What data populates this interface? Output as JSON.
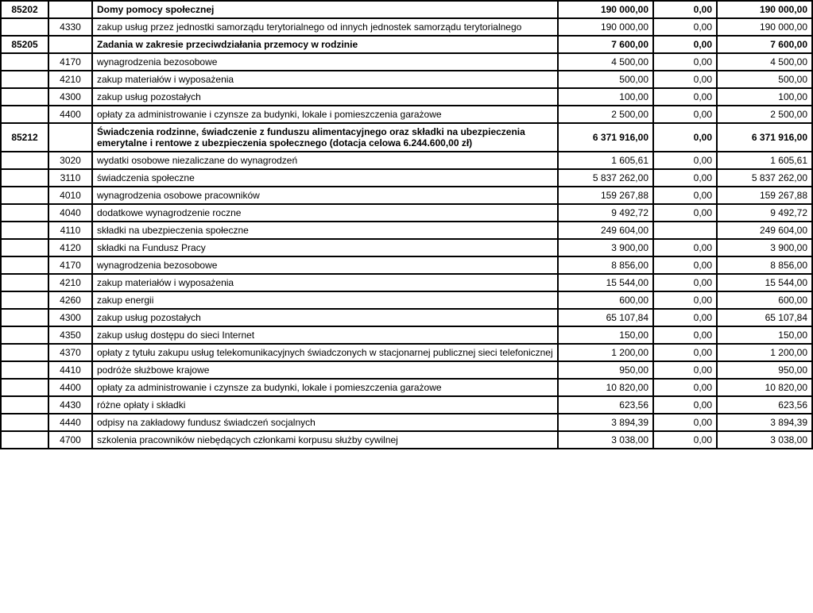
{
  "rows": [
    {
      "code": "85202",
      "sub": "",
      "desc": "Domy pomocy społecznej",
      "v1": "190 000,00",
      "v2": "0,00",
      "v3": "190 000,00",
      "bold": true
    },
    {
      "code": "",
      "sub": "4330",
      "desc": "zakup usług przez jednostki samorządu terytorialnego od innych jednostek samorządu terytorialnego",
      "v1": "190 000,00",
      "v2": "0,00",
      "v3": "190 000,00",
      "bold": false
    },
    {
      "code": "85205",
      "sub": "",
      "desc": "Zadania w zakresie przeciwdziałania przemocy w rodzinie",
      "v1": "7 600,00",
      "v2": "0,00",
      "v3": "7 600,00",
      "bold": true
    },
    {
      "code": "",
      "sub": "4170",
      "desc": "wynagrodzenia bezosobowe",
      "v1": "4 500,00",
      "v2": "0,00",
      "v3": "4 500,00",
      "bold": false
    },
    {
      "code": "",
      "sub": "4210",
      "desc": "zakup materiałów i wyposażenia",
      "v1": "500,00",
      "v2": "0,00",
      "v3": "500,00",
      "bold": false
    },
    {
      "code": "",
      "sub": "4300",
      "desc": "zakup usług pozostałych",
      "v1": "100,00",
      "v2": "0,00",
      "v3": "100,00",
      "bold": false
    },
    {
      "code": "",
      "sub": "4400",
      "desc": "opłaty za administrowanie i czynsze za budynki, lokale i pomieszczenia garażowe",
      "v1": "2 500,00",
      "v2": "0,00",
      "v3": "2 500,00",
      "bold": false
    },
    {
      "code": "85212",
      "sub": "",
      "desc": "Świadczenia rodzinne, świadczenie z funduszu alimentacyjnego oraz składki na ubezpieczenia emerytalne i rentowe z ubezpieczenia społecznego (dotacja celowa 6.244.600,00 zł)",
      "v1": "6 371 916,00",
      "v2": "0,00",
      "v3": "6 371 916,00",
      "bold": true
    },
    {
      "code": "",
      "sub": "3020",
      "desc": "wydatki osobowe niezaliczane do wynagrodzeń",
      "v1": "1 605,61",
      "v2": "0,00",
      "v3": "1 605,61",
      "bold": false
    },
    {
      "code": "",
      "sub": "3110",
      "desc": "świadczenia społeczne",
      "v1": "5 837 262,00",
      "v2": "0,00",
      "v3": "5 837 262,00",
      "bold": false
    },
    {
      "code": "",
      "sub": "4010",
      "desc": "wynagrodzenia osobowe pracowników",
      "v1": "159 267,88",
      "v2": "0,00",
      "v3": "159 267,88",
      "bold": false
    },
    {
      "code": "",
      "sub": "4040",
      "desc": "dodatkowe wynagrodzenie roczne",
      "v1": "9 492,72",
      "v2": "0,00",
      "v3": "9 492,72",
      "bold": false
    },
    {
      "code": "",
      "sub": "4110",
      "desc": "składki na ubezpieczenia społeczne",
      "v1": "249 604,00",
      "v2": "",
      "v3": "249 604,00",
      "bold": false
    },
    {
      "code": "",
      "sub": "4120",
      "desc": "składki na Fundusz Pracy",
      "v1": "3 900,00",
      "v2": "0,00",
      "v3": "3 900,00",
      "bold": false
    },
    {
      "code": "",
      "sub": "4170",
      "desc": "wynagrodzenia bezosobowe",
      "v1": "8 856,00",
      "v2": "0,00",
      "v3": "8 856,00",
      "bold": false
    },
    {
      "code": "",
      "sub": "4210",
      "desc": "zakup materiałów i wyposażenia",
      "v1": "15 544,00",
      "v2": "0,00",
      "v3": "15 544,00",
      "bold": false
    },
    {
      "code": "",
      "sub": "4260",
      "desc": "zakup energii",
      "v1": "600,00",
      "v2": "0,00",
      "v3": "600,00",
      "bold": false
    },
    {
      "code": "",
      "sub": "4300",
      "desc": "zakup usług pozostałych",
      "v1": "65 107,84",
      "v2": "0,00",
      "v3": "65 107,84",
      "bold": false
    },
    {
      "code": "",
      "sub": "4350",
      "desc": "zakup usług dostępu do sieci Internet",
      "v1": "150,00",
      "v2": "0,00",
      "v3": "150,00",
      "bold": false
    },
    {
      "code": "",
      "sub": "4370",
      "desc": "opłaty z tytułu zakupu usług telekomunikacyjnych świadczonych w stacjonarnej publicznej sieci telefonicznej",
      "v1": "1 200,00",
      "v2": "0,00",
      "v3": "1 200,00",
      "bold": false
    },
    {
      "code": "",
      "sub": "4410",
      "desc": "podróże służbowe krajowe",
      "v1": "950,00",
      "v2": "0,00",
      "v3": "950,00",
      "bold": false
    },
    {
      "code": "",
      "sub": "4400",
      "desc": "opłaty za administrowanie i czynsze za budynki, lokale i pomieszczenia garażowe",
      "v1": "10 820,00",
      "v2": "0,00",
      "v3": "10 820,00",
      "bold": false
    },
    {
      "code": "",
      "sub": "4430",
      "desc": "różne opłaty i składki",
      "v1": "623,56",
      "v2": "0,00",
      "v3": "623,56",
      "bold": false
    },
    {
      "code": "",
      "sub": "4440",
      "desc": "odpisy na zakładowy fundusz świadczeń socjalnych",
      "v1": "3 894,39",
      "v2": "0,00",
      "v3": "3 894,39",
      "bold": false
    },
    {
      "code": "",
      "sub": "4700",
      "desc": "szkolenia pracowników niebędących członkami korpusu służby cywilnej",
      "v1": "3 038,00",
      "v2": "0,00",
      "v3": "3 038,00",
      "bold": false
    }
  ]
}
